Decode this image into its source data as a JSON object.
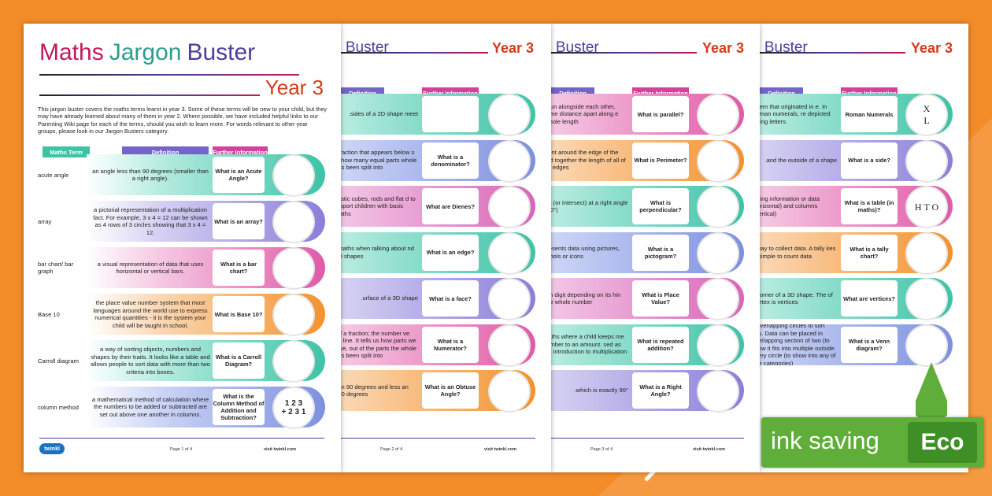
{
  "pages": [
    {
      "title": [
        "Maths",
        "Jargon",
        "Buster"
      ],
      "year": "Year 3",
      "intro": "This jargon buster covers the maths terms learnt in year 3. Some of these terms will be new to your child, but they may have already learned about many of them in year 2. Where possible, we have included helpful links to our Parenting Wiki page for each of the terms, should you wish to learn more. For words relevant to other year groups, please look in our Jargon Busters category.",
      "headers": [
        "Maths Term",
        "Definition",
        "Further Information"
      ],
      "rows": [
        {
          "term": "acute angle",
          "definition": "an angle less than 90 degrees (smaller than a right angle).",
          "info": "What is an Acute Angle?"
        },
        {
          "term": "array",
          "definition": "a pictorial representation of a multiplication fact. For example, 3 x 4 = 12 can be shown as 4 rows of 3 circles showing that 3 x 4 = 12.",
          "info": "What is an array?"
        },
        {
          "term": "bar chart/ bar graph",
          "definition": "a visual representation of data that uses horizontal or vertical bars.",
          "info": "What is a bar chart?"
        },
        {
          "term": "Base 10",
          "definition": "the place value number system that most languages around the world use to express numerical quantities - it is the system your child will be taught in school.",
          "info": "What is Base 10?"
        },
        {
          "term": "Carroll diagram",
          "definition": "a way of sorting objects, numbers and shapes by their traits. It looks like a table and allows people to sort data with more than two criteria into boxes.",
          "info": "What is a Carroll Diagram?"
        },
        {
          "term": "column method",
          "definition": "a mathematical method of calculation where the numbers to be added or subtracted are set out above one another in columns.",
          "info": "What is the Column Method of Addition and Subtraction?",
          "icon_text": [
            "1 2 3",
            "+ 2 3 1"
          ]
        }
      ],
      "footer": {
        "logo": "twinkl",
        "page": "Page 1 of 4",
        "site": "visit twinkl.com"
      }
    },
    {
      "title": [
        "n Buster"
      ],
      "year": "Year 3",
      "headers": [
        "Definition",
        "Further Information"
      ],
      "rows": [
        {
          "definition": "sides of a 2D shape meet."
        },
        {
          "definition": "a fraction that appears below s us how many equal parts whole has been split into.",
          "info": "What is a denominator?"
        },
        {
          "definition": "plastic cubes, rods and flat d to support children with basic maths.",
          "info": "What are Dienes?"
        },
        {
          "definition": "n maths when talking about nd 3D shapes.",
          "info": "What is an edge?"
        },
        {
          "definition": "urface of a 3D shape.",
          "info": "What is a face?"
        },
        {
          "definition": "r of a fraction; the number ve the line. It tells us how parts we have, out of the parts the whole has been split into.",
          "info": "What is a Numerator?"
        },
        {
          "definition": "than 90 degrees and less an 180 degrees.",
          "info": "What is an Obtuse Angle?"
        }
      ],
      "footer": {
        "page": "Page 2 of 4",
        "site": "visit twinkl.com"
      }
    },
    {
      "title": [
        "n Buster"
      ],
      "year": "Year 3",
      "headers": [
        "Definition",
        "Further Information"
      ],
      "rows": [
        {
          "definition": "h run alongside each other, same distance apart along e whole length.",
          "info": "What is parallel?"
        },
        {
          "definition": "ment around the edge of the add together the length of all of its edges.",
          "info": "What is Perimeter?"
        },
        {
          "definition": "eet (or intersect) at a right angle (90°).",
          "info": "What is perpendicular?"
        },
        {
          "definition": "presents data using pictures, mbols or icons.",
          "info": "What is a pictogram?"
        },
        {
          "definition": "ach digit depending on its hin the whole number.",
          "info": "What is Place Value?"
        },
        {
          "definition": "maths where a child keeps me number to an amount. sed as an introduction to multiplication.",
          "info": "What is repeated addition?"
        },
        {
          "definition": "which is exactly 90°.",
          "info": "What is a Right Angle?"
        }
      ],
      "footer": {
        "page": "Page 3 of 4",
        "site": "visit twinkl.com"
      }
    },
    {
      "title": [
        "n Buster"
      ],
      "year": "Year 3",
      "headers": [
        "Definition",
        "Further Information"
      ],
      "rows": [
        {
          "definition": "ystem that originated in e. In Roman numerals, re depicted using letters.",
          "info": "Roman Numerals",
          "icon_text": [
            "X",
            "L"
          ]
        },
        {
          "definition": "and the outside of a shape.",
          "info": "What is a side?"
        },
        {
          "definition": "enting information or data (horizontal) and columns (vertical).",
          "info": "What is a table (in maths)?",
          "icon_text": [
            "H T O"
          ]
        },
        {
          "definition": "y way to collect data. A tally kes it simple to count data.",
          "info": "What is a tally chart?"
        },
        {
          "definition": "e corner of a 3D shape. The of vertex is vertices.",
          "info": "What are vertices?"
        },
        {
          "definition": "g overlapping circles to sort ries. Data can be placed in overlapping section of two (to show it fits into multiple outside every circle (to show into any of the categories).",
          "info": "What is a Venn diagram?"
        }
      ]
    }
  ],
  "badge": {
    "text": "ink saving",
    "eco": "Eco"
  }
}
